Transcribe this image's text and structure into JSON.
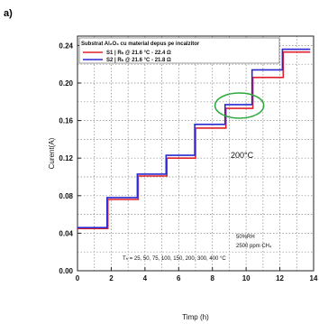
{
  "panel_label": "a)",
  "chart_data": {
    "type": "line",
    "xlabel": "Timp (h)",
    "ylabel": "Curent(A)",
    "xlim": [
      0,
      14
    ],
    "ylim": [
      0.0,
      0.25
    ],
    "xticks": [
      "0",
      "2",
      "4",
      "6",
      "8",
      "10",
      "12",
      "14"
    ],
    "yticks": [
      "0.00",
      "0.04",
      "0.08",
      "0.12",
      "0.16",
      "0.20",
      "0.24"
    ],
    "grid": true,
    "legend_position": "top-left",
    "legend_title": "Substrat Al₂O₃ cu material depus pe incalzitor",
    "series": [
      {
        "name": "S1 | Rₕ @ 21.6 °C - 22.4 Ω",
        "color": "#e0202a",
        "x": [
          0.0,
          1.8,
          1.8,
          3.6,
          3.6,
          5.3,
          5.3,
          7.0,
          7.0,
          8.8,
          8.8,
          10.4,
          10.4,
          12.2,
          12.2,
          13.8
        ],
        "y": [
          0.045,
          0.045,
          0.076,
          0.076,
          0.101,
          0.101,
          0.12,
          0.12,
          0.152,
          0.152,
          0.173,
          0.173,
          0.206,
          0.206,
          0.233,
          0.233
        ]
      },
      {
        "name": "S2 | Rₕ @ 21.6 °C - 21.8 Ω",
        "color": "#2a2ad0",
        "x": [
          0.0,
          1.75,
          1.75,
          3.55,
          3.55,
          5.25,
          5.25,
          6.95,
          6.95,
          8.75,
          8.75,
          10.35,
          10.35,
          12.15,
          12.15,
          13.8
        ],
        "y": [
          0.046,
          0.046,
          0.078,
          0.078,
          0.103,
          0.103,
          0.123,
          0.123,
          0.156,
          0.156,
          0.177,
          0.177,
          0.214,
          0.214,
          0.236,
          0.236
        ]
      }
    ],
    "annotations": {
      "temperature_label": "200°C",
      "humidity": "50%RH",
      "gas": "2500 ppm CH₄",
      "temperature_list": "Tₕ = 25, 50, 75, 100, 150, 200, 300, 400 °C"
    },
    "highlight_ellipse": {
      "x_center": 9.6,
      "y_center": 0.176,
      "note": "marks 200°C step"
    }
  }
}
